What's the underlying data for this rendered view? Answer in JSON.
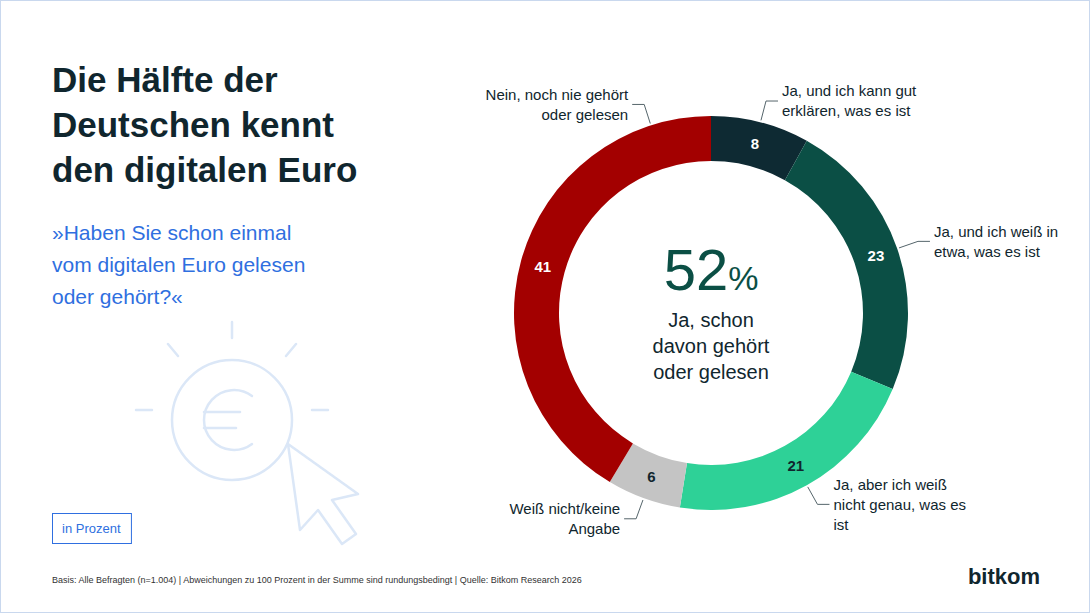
{
  "chart_data": {
    "type": "donut",
    "title": "Die Hälfte der Deutschen kennt den digitalen Euro",
    "subtitle": "»Haben Sie schon einmal vom digitalen Euro gelesen oder gehört?«",
    "categories": [
      "Ja, und ich kann gut erklären, was es ist",
      "Ja, und ich weiß in etwa, was es ist",
      "Ja, aber ich weiß nicht genau, was es ist",
      "Weiß nicht/keine Angabe",
      "Nein, noch nie gehört oder gelesen"
    ],
    "values": [
      8,
      23,
      21,
      6,
      41
    ],
    "colors": [
      "#0e2a33",
      "#0b4f45",
      "#2ed197",
      "#c4c4c4",
      "#a30000"
    ],
    "data_labels": true,
    "center_label": "52%",
    "center_text": "Ja, schon davon gehört oder gelesen",
    "unit_label": "in Prozent",
    "footnote": "Basis: Alle Befragten (n=1.004) | Abweichungen zu 100 Prozent in der Summe sind rundungsbedingt | Quelle: Bitkom Research 2026",
    "brand": "bitkom"
  }
}
